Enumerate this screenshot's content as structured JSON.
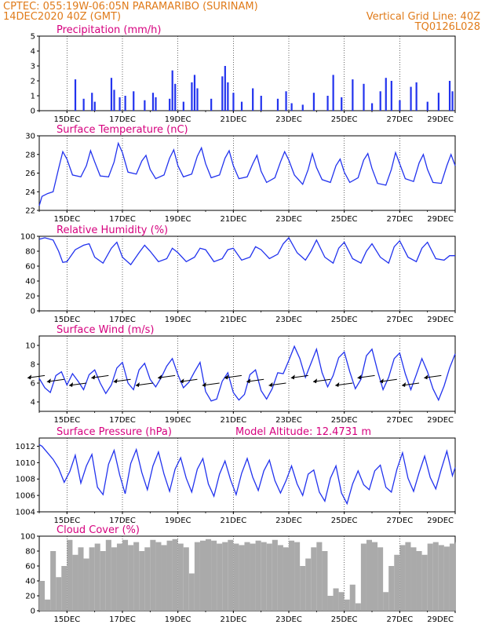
{
  "header": {
    "line1": "CPTEC:   055:19W-06:05N  PARAMARIBO (SURINAM)",
    "line2_left": "14DEC2020 40Z (GMT)",
    "line2_right": "Vertical Grid Line: 40Z",
    "line3_right": "TQ0126L028"
  },
  "colors": {
    "header": "#e07b1a",
    "title": "#d6007e",
    "series": "#2233ee",
    "cloud": "#aaaaaa"
  },
  "x_labels": [
    "15DEC",
    "17DEC",
    "19DEC",
    "21DEC",
    "23DEC",
    "25DEC",
    "27DEC",
    "29DEC"
  ],
  "chart_data": [
    {
      "type": "bar",
      "title": "Precipitation (mm/h)",
      "ylim": [
        0,
        5
      ],
      "yticks": [
        "0",
        "1",
        "2",
        "3",
        "4",
        "5"
      ],
      "x_range_days": [
        14.0,
        29.0
      ],
      "values": [
        {
          "x": 15.3,
          "y": 2.1
        },
        {
          "x": 15.6,
          "y": 0.8
        },
        {
          "x": 15.9,
          "y": 1.2
        },
        {
          "x": 16.0,
          "y": 0.6
        },
        {
          "x": 16.6,
          "y": 2.2
        },
        {
          "x": 16.7,
          "y": 1.4
        },
        {
          "x": 16.9,
          "y": 0.9
        },
        {
          "x": 17.1,
          "y": 1.0
        },
        {
          "x": 17.4,
          "y": 1.3
        },
        {
          "x": 17.8,
          "y": 0.7
        },
        {
          "x": 18.1,
          "y": 1.2
        },
        {
          "x": 18.2,
          "y": 0.9
        },
        {
          "x": 18.7,
          "y": 0.8
        },
        {
          "x": 18.8,
          "y": 2.7
        },
        {
          "x": 18.9,
          "y": 1.8
        },
        {
          "x": 19.2,
          "y": 0.6
        },
        {
          "x": 19.5,
          "y": 1.9
        },
        {
          "x": 19.6,
          "y": 2.4
        },
        {
          "x": 19.7,
          "y": 1.5
        },
        {
          "x": 20.2,
          "y": 0.8
        },
        {
          "x": 20.6,
          "y": 2.3
        },
        {
          "x": 20.7,
          "y": 3.0
        },
        {
          "x": 20.8,
          "y": 1.9
        },
        {
          "x": 21.0,
          "y": 1.2
        },
        {
          "x": 21.3,
          "y": 0.6
        },
        {
          "x": 21.7,
          "y": 1.5
        },
        {
          "x": 22.0,
          "y": 1.0
        },
        {
          "x": 22.6,
          "y": 0.8
        },
        {
          "x": 22.9,
          "y": 1.3
        },
        {
          "x": 23.1,
          "y": 0.5
        },
        {
          "x": 23.5,
          "y": 0.4
        },
        {
          "x": 23.9,
          "y": 1.2
        },
        {
          "x": 24.4,
          "y": 1.0
        },
        {
          "x": 24.6,
          "y": 2.4
        },
        {
          "x": 24.9,
          "y": 0.9
        },
        {
          "x": 25.3,
          "y": 2.1
        },
        {
          "x": 25.7,
          "y": 1.8
        },
        {
          "x": 26.0,
          "y": 0.5
        },
        {
          "x": 26.3,
          "y": 1.3
        },
        {
          "x": 26.5,
          "y": 2.2
        },
        {
          "x": 26.7,
          "y": 2.0
        },
        {
          "x": 27.0,
          "y": 0.7
        },
        {
          "x": 27.4,
          "y": 1.6
        },
        {
          "x": 27.6,
          "y": 1.9
        },
        {
          "x": 28.0,
          "y": 0.6
        },
        {
          "x": 28.4,
          "y": 1.2
        },
        {
          "x": 28.8,
          "y": 2.0
        },
        {
          "x": 28.9,
          "y": 1.3
        }
      ]
    },
    {
      "type": "line",
      "title": "Surface Temperature (nC)",
      "ylim": [
        22,
        30
      ],
      "yticks": [
        "22",
        "24",
        "26",
        "28",
        "30"
      ],
      "x_range_days": [
        14.0,
        29.0
      ],
      "x": [
        14.0,
        14.1,
        14.3,
        14.5,
        14.7,
        14.85,
        15.0,
        15.2,
        15.5,
        15.7,
        15.85,
        16.0,
        16.2,
        16.5,
        16.7,
        16.85,
        17.0,
        17.2,
        17.5,
        17.7,
        17.85,
        18.0,
        18.2,
        18.5,
        18.7,
        18.85,
        19.0,
        19.2,
        19.5,
        19.7,
        19.85,
        20.0,
        20.2,
        20.5,
        20.7,
        20.85,
        21.0,
        21.2,
        21.5,
        21.7,
        21.85,
        22.0,
        22.2,
        22.5,
        22.7,
        22.85,
        23.0,
        23.2,
        23.5,
        23.7,
        23.85,
        24.0,
        24.2,
        24.5,
        24.7,
        24.85,
        25.0,
        25.2,
        25.5,
        25.7,
        25.85,
        26.0,
        26.2,
        26.5,
        26.7,
        26.85,
        27.0,
        27.2,
        27.5,
        27.7,
        27.85,
        28.0,
        28.2,
        28.5,
        28.7,
        28.85,
        29.0
      ],
      "y": [
        22.5,
        23.5,
        23.8,
        24.0,
        26.5,
        28.3,
        27.5,
        25.8,
        25.6,
        26.8,
        28.4,
        27.2,
        25.7,
        25.6,
        27.2,
        29.2,
        28.2,
        26.1,
        25.9,
        27.3,
        27.9,
        26.4,
        25.4,
        25.8,
        27.6,
        28.5,
        26.8,
        25.6,
        25.9,
        27.8,
        28.7,
        27.0,
        25.5,
        25.8,
        27.6,
        28.4,
        26.8,
        25.4,
        25.6,
        27.0,
        27.9,
        26.2,
        25.0,
        25.5,
        27.2,
        28.3,
        27.4,
        25.8,
        24.8,
        26.4,
        28.1,
        26.6,
        25.3,
        25.0,
        26.8,
        27.5,
        26.1,
        25.0,
        25.5,
        27.4,
        28.1,
        26.5,
        24.9,
        24.7,
        26.4,
        28.2,
        27.0,
        25.4,
        25.1,
        27.1,
        28.0,
        26.4,
        25.0,
        24.9,
        26.8,
        28.0,
        26.8
      ]
    },
    {
      "type": "line",
      "title": "Relative Humidity (%)",
      "ylim": [
        0,
        100
      ],
      "yticks": [
        "0",
        "20",
        "40",
        "60",
        "80",
        "100"
      ],
      "x_range_days": [
        14.0,
        29.0
      ],
      "x": [
        14.0,
        14.2,
        14.5,
        14.7,
        14.85,
        15.0,
        15.3,
        15.6,
        15.8,
        16.0,
        16.3,
        16.6,
        16.8,
        17.0,
        17.3,
        17.6,
        17.8,
        18.0,
        18.3,
        18.6,
        18.8,
        19.0,
        19.3,
        19.6,
        19.8,
        20.0,
        20.3,
        20.6,
        20.8,
        21.0,
        21.3,
        21.6,
        21.8,
        22.0,
        22.3,
        22.6,
        22.8,
        23.0,
        23.3,
        23.6,
        23.8,
        24.0,
        24.3,
        24.6,
        24.8,
        25.0,
        25.3,
        25.6,
        25.8,
        26.0,
        26.3,
        26.6,
        26.8,
        27.0,
        27.3,
        27.6,
        27.8,
        28.0,
        28.3,
        28.6,
        28.8,
        29.0
      ],
      "y": [
        96,
        98,
        95,
        80,
        65,
        66,
        82,
        88,
        90,
        72,
        64,
        84,
        92,
        72,
        62,
        78,
        88,
        80,
        66,
        70,
        84,
        78,
        66,
        72,
        84,
        82,
        66,
        70,
        82,
        84,
        68,
        72,
        86,
        82,
        70,
        76,
        90,
        98,
        78,
        68,
        80,
        95,
        72,
        64,
        84,
        92,
        70,
        64,
        80,
        90,
        72,
        64,
        86,
        94,
        72,
        66,
        84,
        92,
        70,
        68,
        74,
        74
      ]
    },
    {
      "type": "line",
      "title": "Surface Wind (m/s)",
      "ylim": [
        3,
        11
      ],
      "yticks": [
        "4",
        "6",
        "8",
        "10"
      ],
      "x_range_days": [
        14.0,
        29.0
      ],
      "x": [
        14.0,
        14.2,
        14.4,
        14.6,
        14.8,
        15.0,
        15.2,
        15.4,
        15.6,
        15.8,
        16.0,
        16.2,
        16.4,
        16.6,
        16.8,
        17.0,
        17.2,
        17.4,
        17.6,
        17.8,
        18.0,
        18.2,
        18.4,
        18.6,
        18.8,
        19.0,
        19.2,
        19.4,
        19.6,
        19.8,
        20.0,
        20.2,
        20.4,
        20.6,
        20.8,
        21.0,
        21.2,
        21.4,
        21.6,
        21.8,
        22.0,
        22.2,
        22.4,
        22.6,
        22.8,
        23.0,
        23.2,
        23.4,
        23.6,
        23.8,
        24.0,
        24.2,
        24.4,
        24.6,
        24.8,
        25.0,
        25.2,
        25.4,
        25.6,
        25.8,
        26.0,
        26.2,
        26.4,
        26.6,
        26.8,
        27.0,
        27.2,
        27.4,
        27.6,
        27.8,
        28.0,
        28.2,
        28.4,
        28.6,
        28.8,
        29.0
      ],
      "y": [
        6.5,
        5.5,
        5.0,
        6.8,
        7.2,
        5.8,
        7.0,
        6.2,
        5.3,
        6.9,
        7.4,
        6.0,
        4.9,
        5.8,
        7.6,
        8.2,
        6.0,
        5.3,
        7.4,
        8.1,
        6.4,
        5.6,
        6.6,
        7.8,
        8.6,
        6.9,
        5.5,
        6.1,
        7.2,
        8.2,
        5.1,
        4.1,
        4.3,
        6.2,
        7.1,
        5.0,
        4.2,
        4.8,
        6.9,
        7.4,
        5.2,
        4.3,
        5.4,
        7.1,
        7.0,
        8.4,
        9.9,
        8.6,
        6.6,
        8.1,
        9.6,
        7.1,
        5.6,
        6.8,
        8.7,
        9.3,
        7.2,
        5.4,
        6.4,
        8.9,
        9.6,
        7.3,
        5.3,
        6.6,
        8.6,
        9.2,
        7.0,
        5.3,
        6.9,
        8.6,
        7.2,
        5.4,
        4.2,
        5.7,
        7.6,
        9.1
      ]
    },
    {
      "type": "line",
      "title": "Surface Pressure (hPa)",
      "annotation": "Model Altitude: 12.4731 m",
      "ylim": [
        1004,
        1013
      ],
      "yticks": [
        "1004",
        "1006",
        "1008",
        "1010",
        "1012"
      ],
      "x_range_days": [
        14.0,
        29.0
      ],
      "x": [
        14.0,
        14.1,
        14.3,
        14.5,
        14.7,
        14.9,
        15.1,
        15.3,
        15.5,
        15.7,
        15.9,
        16.1,
        16.3,
        16.5,
        16.7,
        16.9,
        17.1,
        17.3,
        17.5,
        17.7,
        17.9,
        18.1,
        18.3,
        18.5,
        18.7,
        18.9,
        19.1,
        19.3,
        19.5,
        19.7,
        19.9,
        20.1,
        20.3,
        20.5,
        20.7,
        20.9,
        21.1,
        21.3,
        21.5,
        21.7,
        21.9,
        22.1,
        22.3,
        22.5,
        22.7,
        22.9,
        23.1,
        23.3,
        23.5,
        23.7,
        23.9,
        24.1,
        24.3,
        24.5,
        24.7,
        24.9,
        25.1,
        25.3,
        25.5,
        25.7,
        25.9,
        26.1,
        26.3,
        26.5,
        26.7,
        26.9,
        27.1,
        27.3,
        27.5,
        27.7,
        27.9,
        28.1,
        28.3,
        28.5,
        28.7,
        28.9,
        29.0
      ],
      "y": [
        1012.2,
        1012.0,
        1011.2,
        1010.4,
        1009.3,
        1007.6,
        1008.9,
        1010.9,
        1007.5,
        1009.6,
        1011.0,
        1007.0,
        1006.1,
        1009.8,
        1011.5,
        1008.5,
        1006.2,
        1009.9,
        1011.6,
        1008.8,
        1006.7,
        1009.6,
        1011.3,
        1008.6,
        1006.5,
        1009.2,
        1010.6,
        1008.1,
        1006.4,
        1009.2,
        1010.5,
        1007.4,
        1005.9,
        1008.6,
        1010.2,
        1007.9,
        1006.1,
        1008.7,
        1010.5,
        1008.2,
        1006.6,
        1009.0,
        1010.3,
        1007.8,
        1006.3,
        1007.8,
        1009.6,
        1007.4,
        1006.0,
        1008.6,
        1009.1,
        1006.4,
        1005.3,
        1008.1,
        1009.6,
        1006.3,
        1005.0,
        1007.4,
        1009.0,
        1007.3,
        1006.7,
        1009.0,
        1009.7,
        1007.0,
        1006.4,
        1009.2,
        1011.2,
        1008.1,
        1006.5,
        1008.8,
        1010.8,
        1008.2,
        1006.8,
        1009.2,
        1011.4,
        1008.4,
        1009.4
      ]
    },
    {
      "type": "area",
      "title": "Cloud Cover (%)",
      "ylim": [
        0,
        100
      ],
      "yticks": [
        "0",
        "20",
        "40",
        "60",
        "80",
        "100"
      ],
      "x_range_days": [
        14.0,
        29.0
      ],
      "x": [
        14.0,
        14.2,
        14.4,
        14.6,
        14.8,
        15.0,
        15.2,
        15.4,
        15.6,
        15.8,
        16.0,
        16.2,
        16.4,
        16.6,
        16.8,
        17.0,
        17.2,
        17.4,
        17.6,
        17.8,
        18.0,
        18.2,
        18.4,
        18.6,
        18.8,
        19.0,
        19.2,
        19.4,
        19.6,
        19.8,
        20.0,
        20.2,
        20.4,
        20.6,
        20.8,
        21.0,
        21.2,
        21.4,
        21.6,
        21.8,
        22.0,
        22.2,
        22.4,
        22.6,
        22.8,
        23.0,
        23.2,
        23.4,
        23.6,
        23.8,
        24.0,
        24.2,
        24.4,
        24.6,
        24.8,
        25.0,
        25.2,
        25.4,
        25.6,
        25.8,
        26.0,
        26.2,
        26.4,
        26.6,
        26.8,
        27.0,
        27.2,
        27.4,
        27.6,
        27.8,
        28.0,
        28.2,
        28.4,
        28.6,
        28.8,
        29.0
      ],
      "y": [
        40,
        15,
        80,
        45,
        60,
        95,
        75,
        85,
        70,
        85,
        90,
        80,
        95,
        85,
        90,
        95,
        88,
        92,
        80,
        85,
        95,
        92,
        88,
        94,
        96,
        90,
        85,
        50,
        92,
        94,
        96,
        94,
        90,
        92,
        95,
        90,
        88,
        92,
        90,
        94,
        92,
        90,
        95,
        88,
        85,
        94,
        92,
        60,
        70,
        85,
        92,
        80,
        20,
        30,
        25,
        15,
        35,
        10,
        90,
        95,
        92,
        85,
        25,
        60,
        75,
        88,
        92,
        85,
        80,
        75,
        90,
        92,
        88,
        86,
        90,
        92
      ]
    }
  ]
}
